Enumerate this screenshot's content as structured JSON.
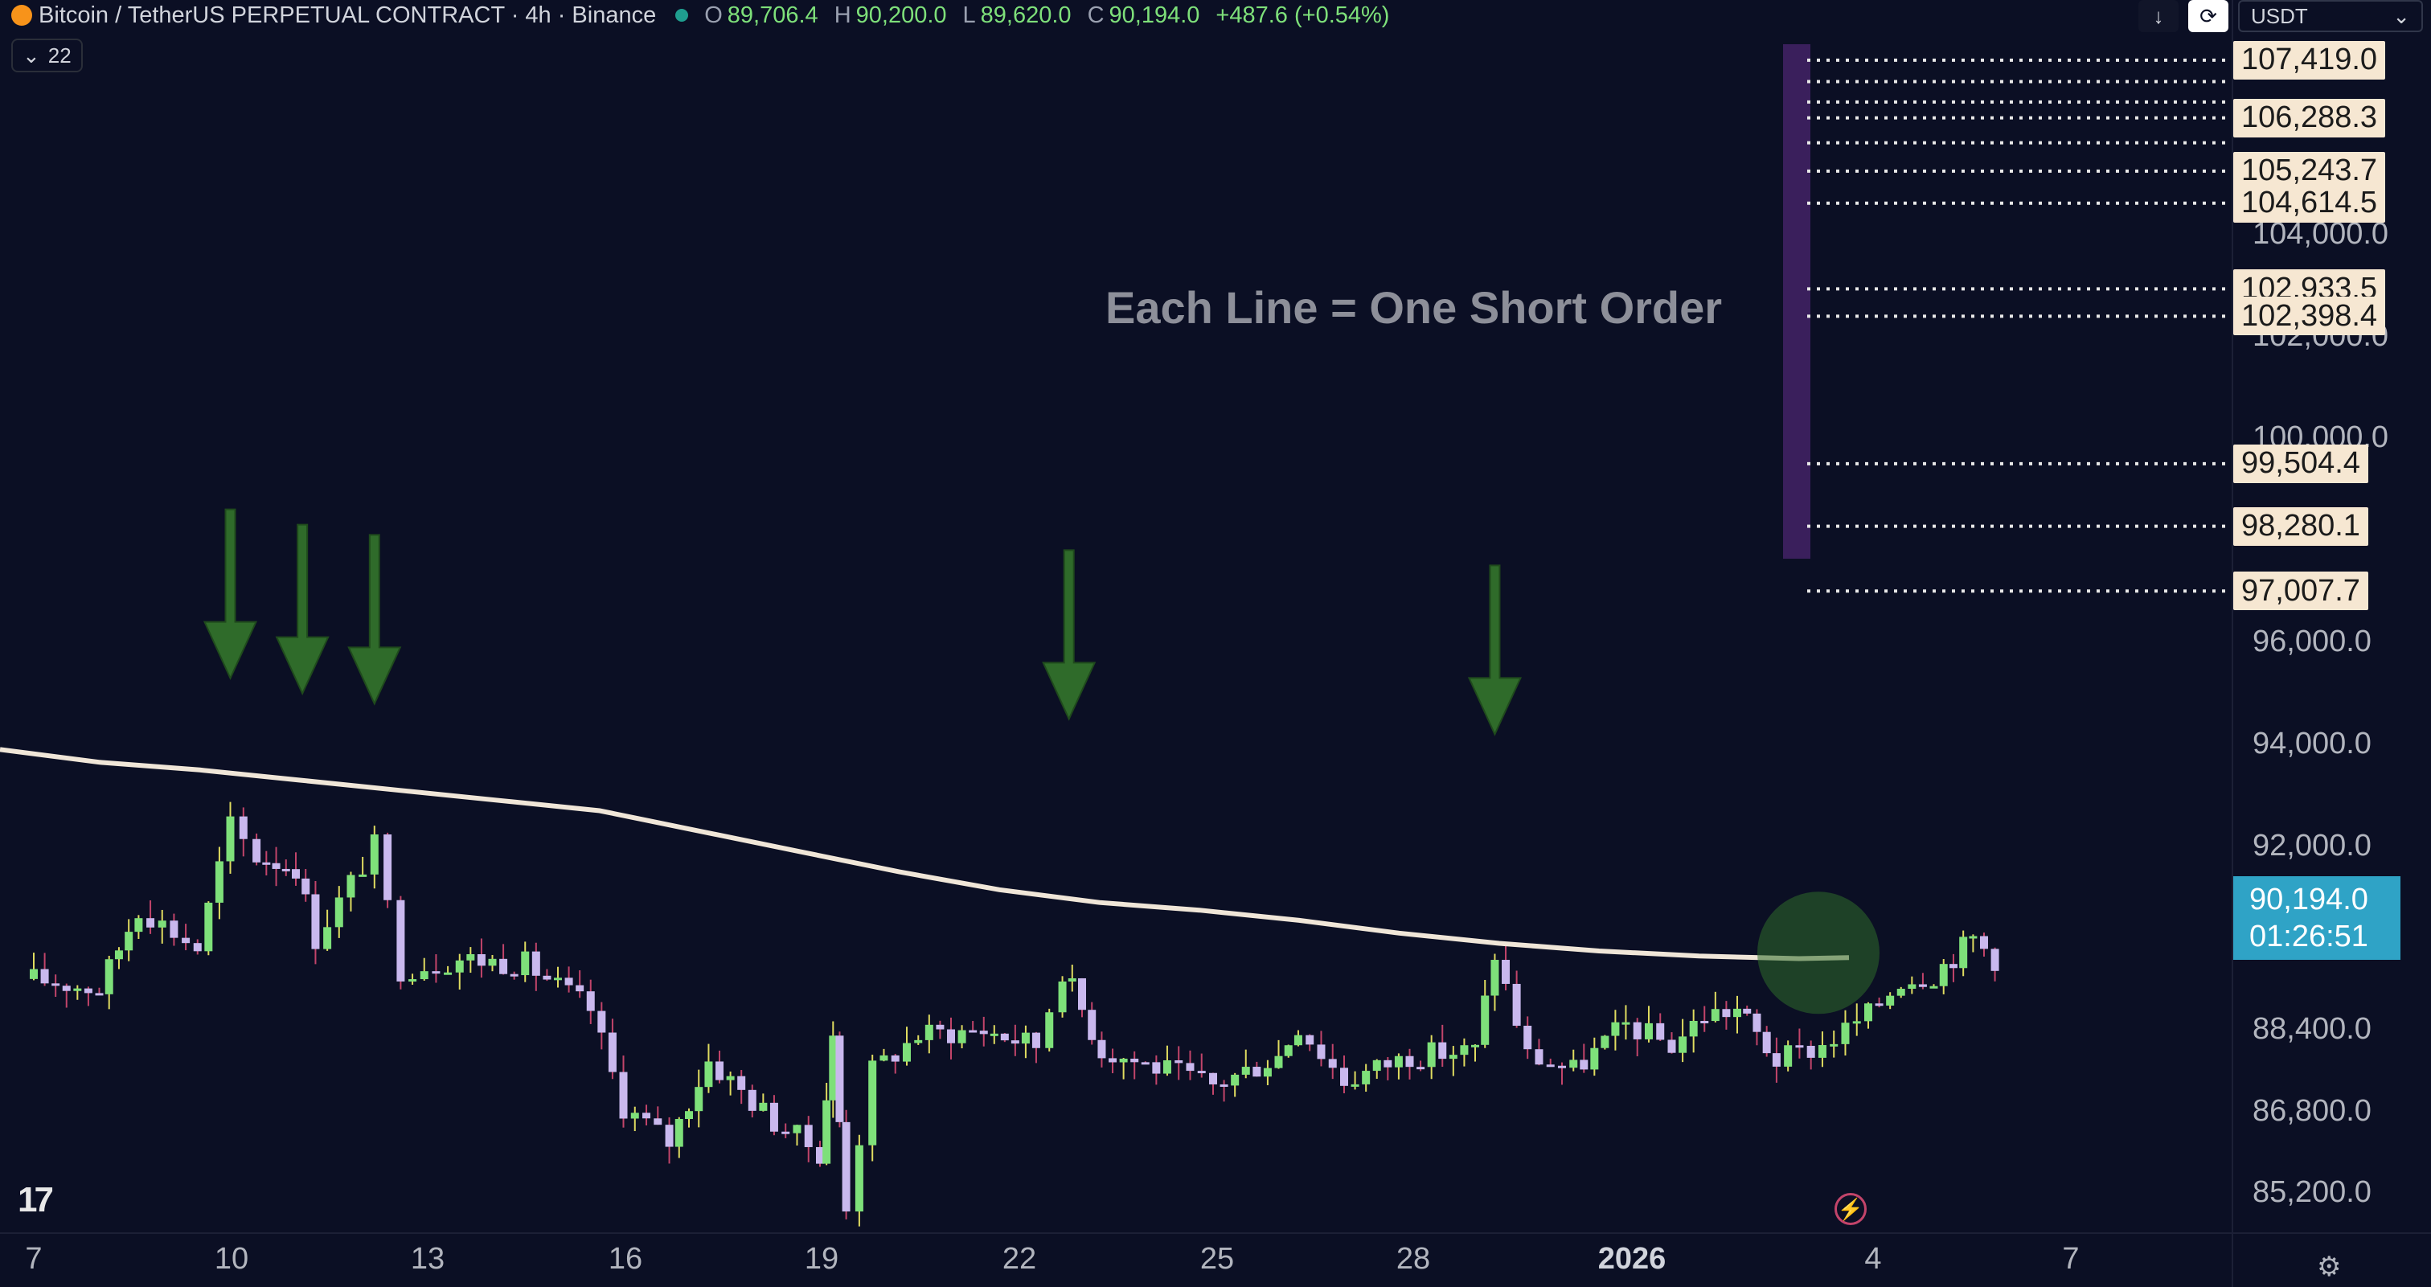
{
  "header": {
    "symbol": "Bitcoin / TetherUS PERPETUAL CONTRACT · 4h · Binance",
    "o_label": "O",
    "o_value": "89,706.4",
    "h_label": "H",
    "h_value": "90,200.0",
    "l_label": "L",
    "l_value": "89,620.0",
    "c_label": "C",
    "c_value": "90,194.0",
    "change": "+487.6 (+0.54%)"
  },
  "indicators_toggle": {
    "icon": "chevron-down-icon",
    "count": "22"
  },
  "toolbar": {
    "download_icon": "↓",
    "sync_icon": "⟳",
    "currency": "USDT"
  },
  "annotation": "Each Line = One Short Order",
  "price_axis": {
    "ticks": [
      "104,000.0",
      "102,000.0",
      "100,000.0",
      "96,000.0",
      "94,000.0",
      "92,000.0",
      "88,400.0",
      "86,800.0",
      "85,200.0"
    ]
  },
  "order_labels": [
    "107,419.0",
    "106,288.3",
    "105,243.7",
    "104,614.5",
    "102,933.5",
    "102,398.4",
    "99,504.4",
    "98,280.1",
    "97,007.7"
  ],
  "current_price": {
    "price": "90,194.0",
    "countdown": "01:26:51"
  },
  "time_axis": {
    "ticks": [
      {
        "label": "7",
        "bold": false
      },
      {
        "label": "10",
        "bold": false
      },
      {
        "label": "13",
        "bold": false
      },
      {
        "label": "16",
        "bold": false
      },
      {
        "label": "19",
        "bold": false
      },
      {
        "label": "22",
        "bold": false
      },
      {
        "label": "25",
        "bold": false
      },
      {
        "label": "28",
        "bold": false
      },
      {
        "label": "2026",
        "bold": true
      },
      {
        "label": "4",
        "bold": false
      },
      {
        "label": "7",
        "bold": false
      }
    ]
  },
  "logo_text": "17",
  "colors": {
    "background": "#0b0f24",
    "bull_candle": "#7ee07a",
    "bear_candle": "#c9b8ee",
    "ma_line": "#f0e6d8",
    "arrow": "#2f6b2a",
    "order_label_bg": "#f6e7d2",
    "current_price_bg": "#2fa3c6",
    "zone_bar": "#3a1f5c"
  },
  "chart_data": {
    "type": "candlestick",
    "title": "Bitcoin / TetherUS PERPETUAL CONTRACT · 4h · Binance",
    "ylim": [
      84400,
      108600
    ],
    "x_ticks": [
      "7",
      "10",
      "13",
      "16",
      "19",
      "22",
      "25",
      "28",
      "2026",
      "4",
      "7"
    ],
    "moving_average": [
      [
        0,
        93900
      ],
      [
        3,
        93650
      ],
      [
        6,
        93500
      ],
      [
        9,
        93300
      ],
      [
        12,
        93100
      ],
      [
        15,
        92900
      ],
      [
        18,
        92700
      ],
      [
        21,
        92300
      ],
      [
        24,
        91900
      ],
      [
        27,
        91500
      ],
      [
        30,
        91150
      ],
      [
        33,
        90900
      ],
      [
        36,
        90750
      ],
      [
        39,
        90550
      ],
      [
        42,
        90300
      ],
      [
        45,
        90100
      ],
      [
        48,
        89950
      ],
      [
        51,
        89850
      ],
      [
        54,
        89800
      ],
      [
        55.5,
        89820
      ]
    ],
    "short_orders": [
      107419.0,
      107000.0,
      106600.0,
      106288.3,
      105800.0,
      105243.7,
      104614.5,
      102933.5,
      102398.4,
      99504.4,
      98280.1,
      97007.7
    ],
    "arrows_at": [
      [
        10,
        95300
      ],
      [
        11.1,
        95000
      ],
      [
        12.2,
        94800
      ],
      [
        22.8,
        94500
      ],
      [
        29.3,
        94200
      ]
    ],
    "highlight": [
      54.6,
      89850
    ]
  }
}
